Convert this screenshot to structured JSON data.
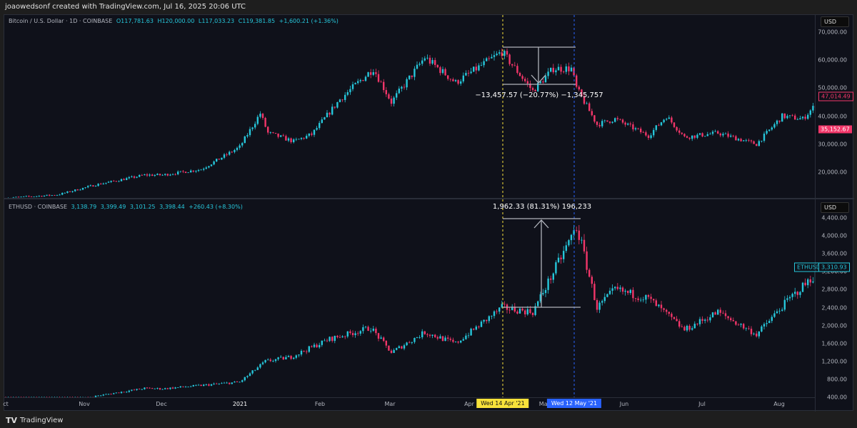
{
  "header": {
    "title": "joaowedsonf created with TradingView.com, Jul 16, 2025 20:06 UTC"
  },
  "top": {
    "symbol": "Bitcoin / U.S. Dollar · 1D · COINBASE",
    "o": "O117,781.63",
    "h": "H120,000.00",
    "l": "L117,033.23",
    "c": "C119,381.85",
    "chg": "+1,600.21 (+1.36%)",
    "currency": "USD",
    "ticks": [
      "70,000.00",
      "60,000.00",
      "50,000.00",
      "40,000.00",
      "30,000.00",
      "20,000.00"
    ],
    "price_label_1": "47,014.49",
    "price_label_2": "35,152.67",
    "measure": "−13,457.57 (−20.77%) −1,345,757"
  },
  "bottom": {
    "symbol": "ETHUSD · COINBASE",
    "o": "3,138.79",
    "h": "3,399.49",
    "l": "3,101.25",
    "c": "3,398.44",
    "chg": "+260.43 (+8.30%)",
    "currency": "USD",
    "ticks": [
      "4,400.00",
      "4,000.00",
      "3,600.00",
      "3,200.00",
      "2,800.00",
      "2,400.00",
      "2,000.00",
      "1,600.00",
      "1,200.00",
      "800.00",
      "400.00"
    ],
    "symbol_tag": "ETHUSD",
    "price_label": "3,310.93",
    "measure": "1,962.33 (81.31%) 196,233"
  },
  "xaxis": {
    "labels": [
      "ct",
      "Nov",
      "Dec",
      "2021",
      "Feb",
      "Mar",
      "Apr",
      "May",
      "Jun",
      "Jul",
      "Aug"
    ],
    "cursor_1": "Wed 14 Apr '21",
    "cursor_2": "Wed 12 May '21"
  },
  "footer": {
    "brand": "TradingView"
  },
  "colors": {
    "up": "#26c6da",
    "down": "#f23669",
    "bg": "#0f111a",
    "cursor1": "#f7e13a",
    "cursor2": "#2962ff"
  },
  "chart_data": {
    "type": "candlestick",
    "x_start": "2020-10-01",
    "btc_path": [
      [
        0,
        10800
      ],
      [
        20,
        11900
      ],
      [
        35,
        15500
      ],
      [
        54,
        19000
      ],
      [
        61,
        19000
      ],
      [
        76,
        21000
      ],
      [
        91,
        29000
      ],
      [
        99,
        41000
      ],
      [
        102,
        34000
      ],
      [
        112,
        31000
      ],
      [
        119,
        33500
      ],
      [
        130,
        46000
      ],
      [
        143,
        57000
      ],
      [
        150,
        45000
      ],
      [
        163,
        61000
      ],
      [
        175,
        52000
      ],
      [
        193,
        63000
      ],
      [
        205,
        49000
      ],
      [
        213,
        57000
      ],
      [
        220,
        57000
      ],
      [
        222,
        50000
      ],
      [
        230,
        37000
      ],
      [
        237,
        39000
      ],
      [
        250,
        33000
      ],
      [
        257,
        40000
      ],
      [
        264,
        32500
      ],
      [
        277,
        34000
      ],
      [
        292,
        30000
      ],
      [
        302,
        40000
      ],
      [
        310,
        39000
      ],
      [
        318,
        47000
      ]
    ],
    "eth_path": [
      [
        0,
        360
      ],
      [
        31,
        390
      ],
      [
        54,
        600
      ],
      [
        61,
        590
      ],
      [
        91,
        740
      ],
      [
        101,
        1200
      ],
      [
        111,
        1300
      ],
      [
        126,
        1700
      ],
      [
        142,
        1950
      ],
      [
        150,
        1400
      ],
      [
        163,
        1850
      ],
      [
        175,
        1600
      ],
      [
        193,
        2400
      ],
      [
        205,
        2300
      ],
      [
        214,
        3300
      ],
      [
        222,
        4200
      ],
      [
        224,
        3800
      ],
      [
        230,
        2400
      ],
      [
        237,
        2800
      ],
      [
        250,
        2600
      ],
      [
        264,
        1900
      ],
      [
        277,
        2300
      ],
      [
        292,
        1800
      ],
      [
        304,
        2550
      ],
      [
        318,
        3300
      ]
    ]
  }
}
